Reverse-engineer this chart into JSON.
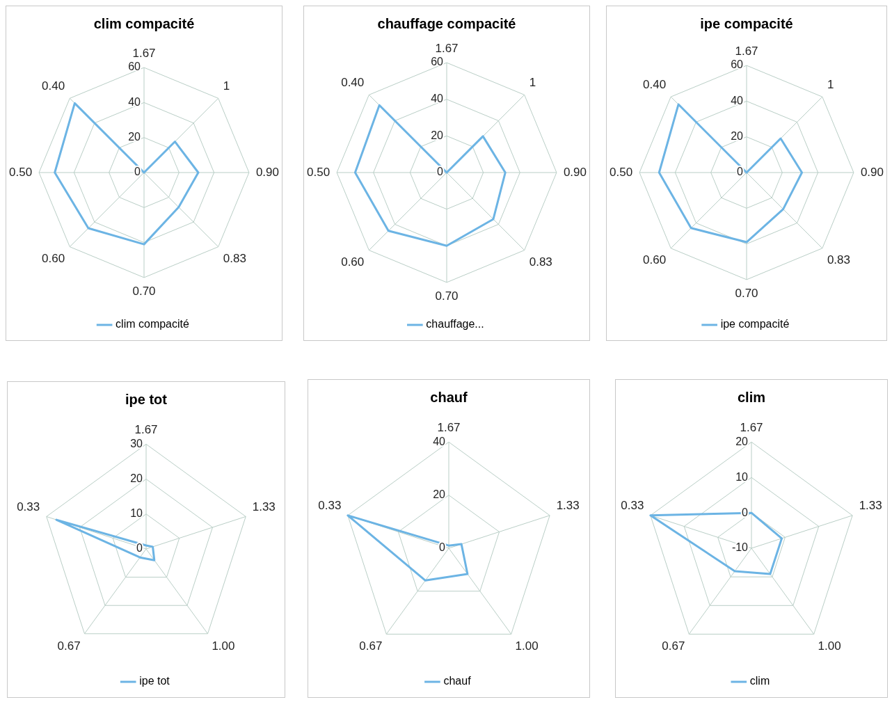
{
  "chart_data": [
    {
      "type": "radar",
      "title": "clim compacité",
      "categories": [
        "1.67",
        "1",
        "0.90",
        "0.83",
        "0.70",
        "0.60",
        "0.50",
        "0.40"
      ],
      "ylim": [
        0,
        60
      ],
      "yticks": [
        0,
        20,
        40,
        60
      ],
      "grid": true,
      "legend": "bottom",
      "marker": "none",
      "series": [
        {
          "name": "clim compacité",
          "color": "#6cb4e4",
          "values": [
            0,
            25,
            31,
            28,
            41,
            45,
            51,
            56
          ]
        }
      ]
    },
    {
      "type": "radar",
      "title": "chauffage compacité",
      "categories": [
        "1.67",
        "1",
        "0.90",
        "0.83",
        "0.70",
        "0.60",
        "0.50",
        "0.40"
      ],
      "ylim": [
        0,
        60
      ],
      "yticks": [
        0,
        20,
        40,
        60
      ],
      "grid": true,
      "legend": "bottom",
      "marker": "none",
      "series": [
        {
          "name": "chauffage...",
          "color": "#6cb4e4",
          "values": [
            0,
            28,
            32,
            36,
            40,
            45,
            50,
            52
          ]
        }
      ]
    },
    {
      "type": "radar",
      "title": "ipe compacité",
      "categories": [
        "1.67",
        "1",
        "0.90",
        "0.83",
        "0.70",
        "0.60",
        "0.50",
        "0.40"
      ],
      "ylim": [
        0,
        60
      ],
      "yticks": [
        0,
        20,
        40,
        60
      ],
      "grid": true,
      "legend": "bottom",
      "marker": "none",
      "series": [
        {
          "name": "ipe compacité",
          "color": "#6cb4e4",
          "values": [
            0,
            27,
            31,
            29,
            39,
            44,
            49,
            54
          ]
        }
      ]
    },
    {
      "type": "radar",
      "title": "ipe tot",
      "categories": [
        "1.67",
        "1.33",
        "1.00",
        "0.67",
        "0.33"
      ],
      "ylim": [
        0,
        30
      ],
      "yticks": [
        0,
        10,
        20,
        30
      ],
      "grid": true,
      "legend": "bottom",
      "marker": "none",
      "series": [
        {
          "name": "ipe tot",
          "color": "#6cb4e4",
          "values": [
            1,
            2,
            4,
            3,
            27
          ]
        }
      ]
    },
    {
      "type": "radar",
      "title": "chauf",
      "categories": [
        "1.67",
        "1.33",
        "1.00",
        "0.67",
        "0.33"
      ],
      "ylim": [
        0,
        40
      ],
      "yticks": [
        0,
        20,
        40
      ],
      "grid": true,
      "legend": "bottom",
      "marker": "none",
      "series": [
        {
          "name": "chauf",
          "color": "#6cb4e4",
          "values": [
            1,
            5,
            12,
            15,
            40
          ]
        }
      ]
    },
    {
      "type": "radar",
      "title": "clim",
      "categories": [
        "1.67",
        "1.33",
        "1.00",
        "0.67",
        "0.33"
      ],
      "ylim": [
        -10,
        20
      ],
      "yticks": [
        -10,
        0,
        10,
        20
      ],
      "grid": true,
      "legend": "bottom",
      "marker": "none",
      "series": [
        {
          "name": "clim",
          "color": "#6cb4e4",
          "values": [
            0,
            -1,
            -1,
            -2,
            20
          ]
        }
      ]
    }
  ]
}
